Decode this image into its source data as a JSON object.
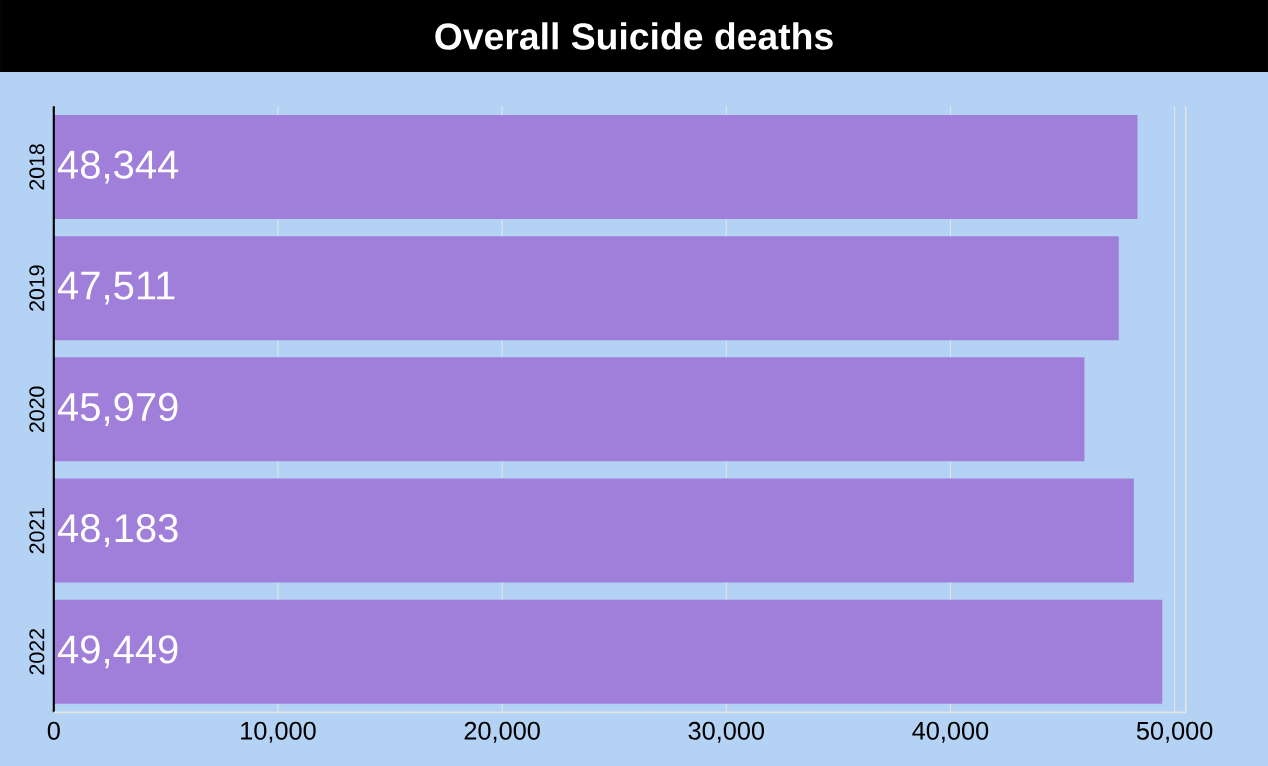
{
  "chart_data": {
    "type": "bar",
    "orientation": "horizontal",
    "title": "Overall Suicide deaths",
    "categories": [
      "2018",
      "2019",
      "2020",
      "2021",
      "2022"
    ],
    "values": [
      48344,
      47511,
      45979,
      48183,
      49449
    ],
    "value_labels": [
      "48,344",
      "47,511",
      "45,979",
      "48,183",
      "49,449"
    ],
    "color": "#a07fdb",
    "xlim": [
      0,
      50500
    ],
    "xticks": [
      0,
      {
        "value": 10000,
        "label": "10,000"
      },
      {
        "value": 20000,
        "label": "20,000"
      },
      {
        "value": 30000,
        "label": "30,000"
      },
      {
        "value": 40000,
        "label": "40,000"
      },
      {
        "value": 50000,
        "label": "50,000"
      }
    ],
    "grid": "x"
  }
}
